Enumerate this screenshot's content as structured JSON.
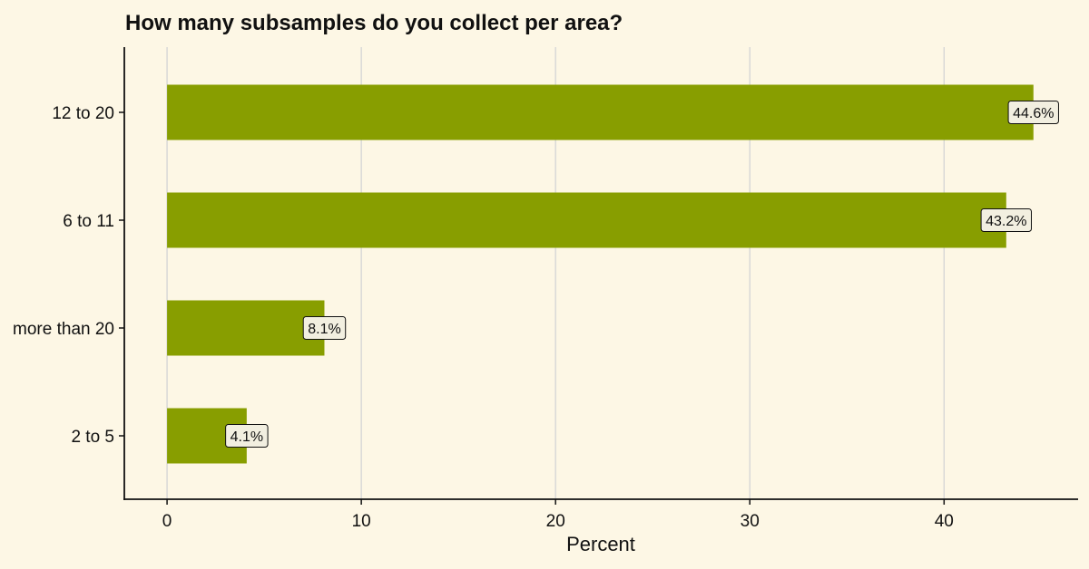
{
  "chart_data": {
    "type": "bar",
    "orientation": "horizontal",
    "title": "How many subsamples do you collect per area?",
    "xlabel": "Percent",
    "ylabel": "",
    "categories": [
      "12 to 20",
      "6 to 11",
      "more than 20",
      "2 to 5"
    ],
    "values": [
      44.6,
      43.2,
      8.1,
      4.1
    ],
    "data_labels": [
      "44.6%",
      "43.2%",
      "8.1%",
      "4.1%"
    ],
    "x_ticks": [
      0,
      10,
      20,
      30,
      40
    ],
    "x_tick_labels": [
      "0",
      "10",
      "20",
      "30",
      "40"
    ],
    "xlim": [
      -2.2,
      46.9
    ],
    "grid": "vertical major",
    "legend": "none",
    "colors": {
      "background": "#fdf7e5",
      "bar": "#889e00",
      "grid": "#d6d6d6",
      "axis": "#111111",
      "label_fill": "#f2efe0",
      "label_border": "#111111"
    }
  }
}
